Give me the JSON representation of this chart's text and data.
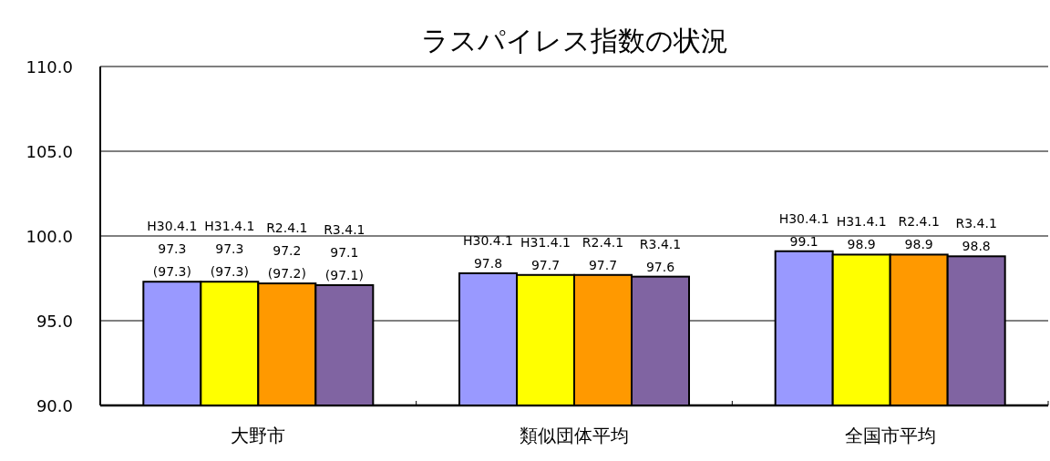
{
  "chart_data": {
    "type": "bar",
    "title": "ラスパイレス指数の状況",
    "categories": [
      "大野市",
      "類似団体平均",
      "全国市平均"
    ],
    "series": [
      {
        "name": "H30.4.1",
        "color": "#9999ff",
        "values": [
          97.3,
          97.8,
          99.1
        ],
        "value_labels": [
          "97.3\n(97.3)",
          "97.8",
          "99.1"
        ]
      },
      {
        "name": "H31.4.1",
        "color": "#ffff00",
        "values": [
          97.3,
          97.7,
          98.9
        ],
        "value_labels": [
          "97.3\n(97.3)",
          "97.7",
          "98.9"
        ]
      },
      {
        "name": "R2.4.1",
        "color": "#ff9900",
        "values": [
          97.2,
          97.7,
          98.9
        ],
        "value_labels": [
          "97.2\n(97.2)",
          "97.7",
          "98.9"
        ]
      },
      {
        "name": "R3.4.1",
        "color": "#8064a2",
        "values": [
          97.1,
          97.6,
          98.8
        ],
        "value_labels": [
          "97.1\n(97.1)",
          "97.6",
          "98.8"
        ]
      }
    ],
    "ylim": [
      90,
      110
    ],
    "yticks": [
      {
        "value": 90,
        "label": "90.0"
      },
      {
        "value": 95,
        "label": "95.0"
      },
      {
        "value": 100,
        "label": "100.0"
      },
      {
        "value": 105,
        "label": "105.0"
      },
      {
        "value": 110,
        "label": "110.0"
      }
    ],
    "grid": "y"
  }
}
